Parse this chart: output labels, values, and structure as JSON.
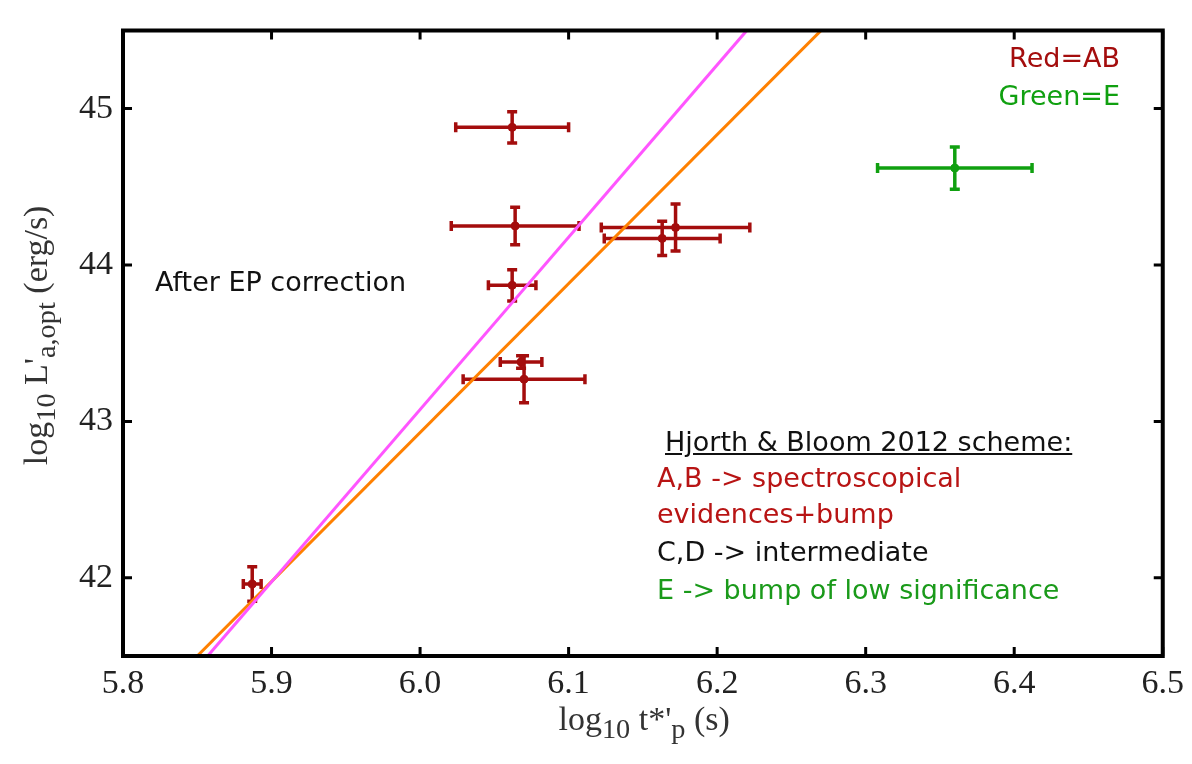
{
  "chart_data": {
    "type": "scatter",
    "xlabel": "log$_{10}$ t*'$_{p}$ (s)",
    "ylabel": "log$_{10}$ L'$_{a,opt}$ (erg/s)",
    "xlim": [
      5.8,
      6.5
    ],
    "xticks": [
      5.8,
      5.9,
      {
        "value": 6,
        "label": "6.0"
      },
      6.1,
      6.2,
      6.3,
      6.4,
      6.5
    ],
    "ylim": [
      41.5,
      45.5
    ],
    "yticks": [
      42,
      43,
      44,
      45
    ],
    "grid": false,
    "legend": "top right",
    "series": [
      {
        "name": "Red=AB",
        "color": "#a40d0d",
        "marker": "circle",
        "x": [
          6.062,
          6.064,
          6.172,
          6.163,
          6.062,
          6.068,
          6.07,
          5.887
        ],
        "values": [
          44.88,
          44.25,
          44.24,
          44.17,
          43.87,
          43.38,
          43.27,
          41.96
        ],
        "errors": [
          0.1,
          0.12,
          0.15,
          0.11,
          0.1,
          0.04,
          0.15,
          0.11
        ],
        "xerrors": [
          0.038,
          0.043,
          0.05,
          0.039,
          0.016,
          0.014,
          0.041,
          0.006
        ]
      },
      {
        "name": "Green=E",
        "color": "#10a010",
        "marker": "circle",
        "x": [
          6.36
        ],
        "values": [
          44.62
        ],
        "errors": [
          0.135
        ],
        "xerrors": [
          0.052
        ]
      },
      {
        "type": "line",
        "color": "#ff55ff",
        "x": [
          5.857,
          6.22
        ],
        "values": [
          41.5,
          45.5
        ]
      },
      {
        "type": "line",
        "color": "#ff8000",
        "x": [
          5.85,
          6.27
        ],
        "values": [
          41.5,
          45.5
        ]
      }
    ],
    "annotations": [
      "After EP correction",
      "Hjorth & Bloom 2012 scheme:",
      "A,B -> spectroscopical evidences+bump",
      "C,D -> intermediate",
      "E -> bump of low significance"
    ]
  }
}
